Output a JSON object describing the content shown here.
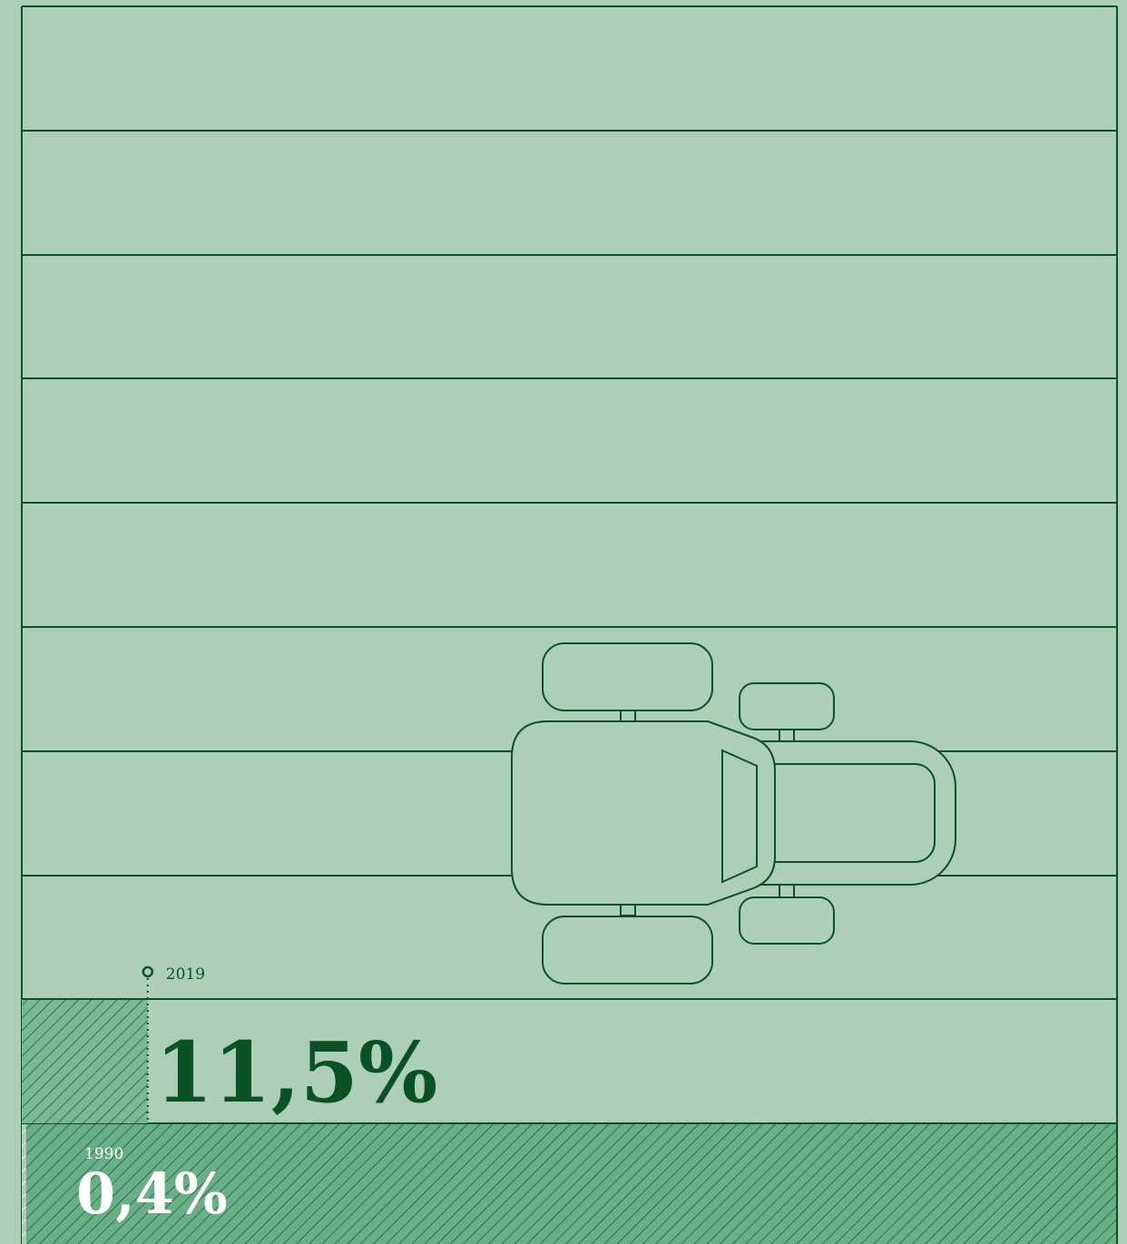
{
  "chart_data": {
    "type": "bar",
    "categories": [
      "1990",
      "2019"
    ],
    "values": [
      0.4,
      11.5
    ],
    "value_labels": [
      "0,4%",
      "11,5%"
    ],
    "xlim": [
      0,
      100
    ]
  }
}
